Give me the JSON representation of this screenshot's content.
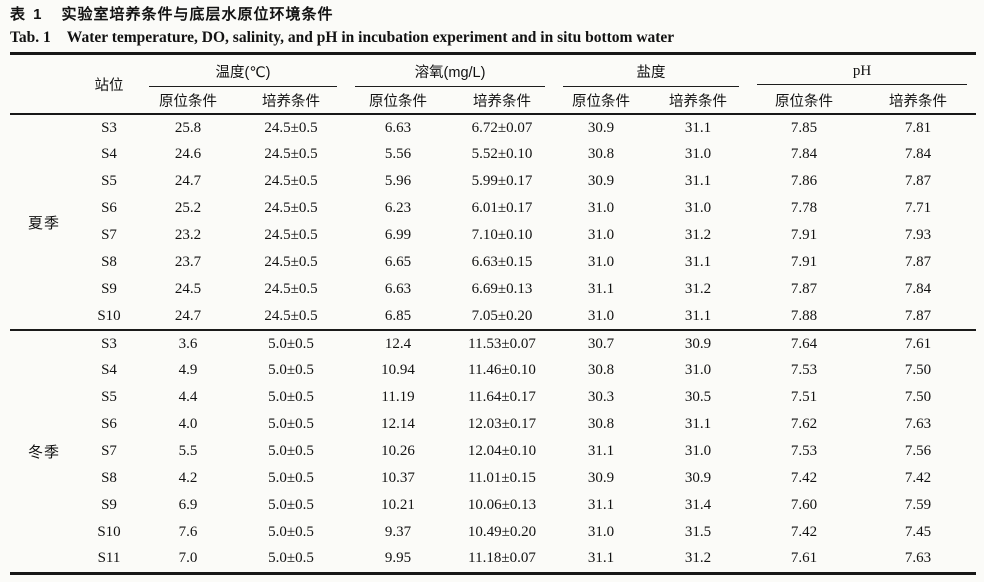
{
  "caption": {
    "zh_label": "表 1",
    "zh_text": "实验室培养条件与底层水原位环境条件",
    "en_label": "Tab. 1",
    "en_text": "Water temperature, DO, salinity, and pH in incubation experiment and in situ bottom water"
  },
  "table": {
    "station_header": "站位",
    "groups": [
      {
        "label": "温度(℃)"
      },
      {
        "label": "溶氧(mg/L)"
      },
      {
        "label": "盐度"
      },
      {
        "label": "pH"
      }
    ],
    "sub_headers": {
      "in_situ": "原位条件",
      "incubation": "培养条件"
    },
    "sections": [
      {
        "season": "夏季",
        "rows": [
          {
            "station": "S3",
            "values": [
              "25.8",
              "24.5±0.5",
              "6.63",
              "6.72±0.07",
              "30.9",
              "31.1",
              "7.85",
              "7.81"
            ]
          },
          {
            "station": "S4",
            "values": [
              "24.6",
              "24.5±0.5",
              "5.56",
              "5.52±0.10",
              "30.8",
              "31.0",
              "7.84",
              "7.84"
            ]
          },
          {
            "station": "S5",
            "values": [
              "24.7",
              "24.5±0.5",
              "5.96",
              "5.99±0.17",
              "30.9",
              "31.1",
              "7.86",
              "7.87"
            ]
          },
          {
            "station": "S6",
            "values": [
              "25.2",
              "24.5±0.5",
              "6.23",
              "6.01±0.17",
              "31.0",
              "31.0",
              "7.78",
              "7.71"
            ]
          },
          {
            "station": "S7",
            "values": [
              "23.2",
              "24.5±0.5",
              "6.99",
              "7.10±0.10",
              "31.0",
              "31.2",
              "7.91",
              "7.93"
            ]
          },
          {
            "station": "S8",
            "values": [
              "23.7",
              "24.5±0.5",
              "6.65",
              "6.63±0.15",
              "31.0",
              "31.1",
              "7.91",
              "7.87"
            ]
          },
          {
            "station": "S9",
            "values": [
              "24.5",
              "24.5±0.5",
              "6.63",
              "6.69±0.13",
              "31.1",
              "31.2",
              "7.87",
              "7.84"
            ]
          },
          {
            "station": "S10",
            "values": [
              "24.7",
              "24.5±0.5",
              "6.85",
              "7.05±0.20",
              "31.0",
              "31.1",
              "7.88",
              "7.87"
            ]
          }
        ]
      },
      {
        "season": "冬季",
        "rows": [
          {
            "station": "S3",
            "values": [
              "3.6",
              "5.0±0.5",
              "12.4",
              "11.53±0.07",
              "30.7",
              "30.9",
              "7.64",
              "7.61"
            ]
          },
          {
            "station": "S4",
            "values": [
              "4.9",
              "5.0±0.5",
              "10.94",
              "11.46±0.10",
              "30.8",
              "31.0",
              "7.53",
              "7.50"
            ]
          },
          {
            "station": "S5",
            "values": [
              "4.4",
              "5.0±0.5",
              "11.19",
              "11.64±0.17",
              "30.3",
              "30.5",
              "7.51",
              "7.50"
            ]
          },
          {
            "station": "S6",
            "values": [
              "4.0",
              "5.0±0.5",
              "12.14",
              "12.03±0.17",
              "30.8",
              "31.1",
              "7.62",
              "7.63"
            ]
          },
          {
            "station": "S7",
            "values": [
              "5.5",
              "5.0±0.5",
              "10.26",
              "12.04±0.10",
              "31.1",
              "31.0",
              "7.53",
              "7.56"
            ]
          },
          {
            "station": "S8",
            "values": [
              "4.2",
              "5.0±0.5",
              "10.37",
              "11.01±0.15",
              "30.9",
              "30.9",
              "7.42",
              "7.42"
            ]
          },
          {
            "station": "S9",
            "values": [
              "6.9",
              "5.0±0.5",
              "10.21",
              "10.06±0.13",
              "31.1",
              "31.4",
              "7.60",
              "7.59"
            ]
          },
          {
            "station": "S10",
            "values": [
              "7.6",
              "5.0±0.5",
              "9.37",
              "10.49±0.20",
              "31.0",
              "31.5",
              "7.42",
              "7.45"
            ]
          },
          {
            "station": "S11",
            "values": [
              "7.0",
              "5.0±0.5",
              "9.95",
              "11.18±0.07",
              "31.1",
              "31.2",
              "7.61",
              "7.63"
            ]
          }
        ]
      }
    ]
  }
}
